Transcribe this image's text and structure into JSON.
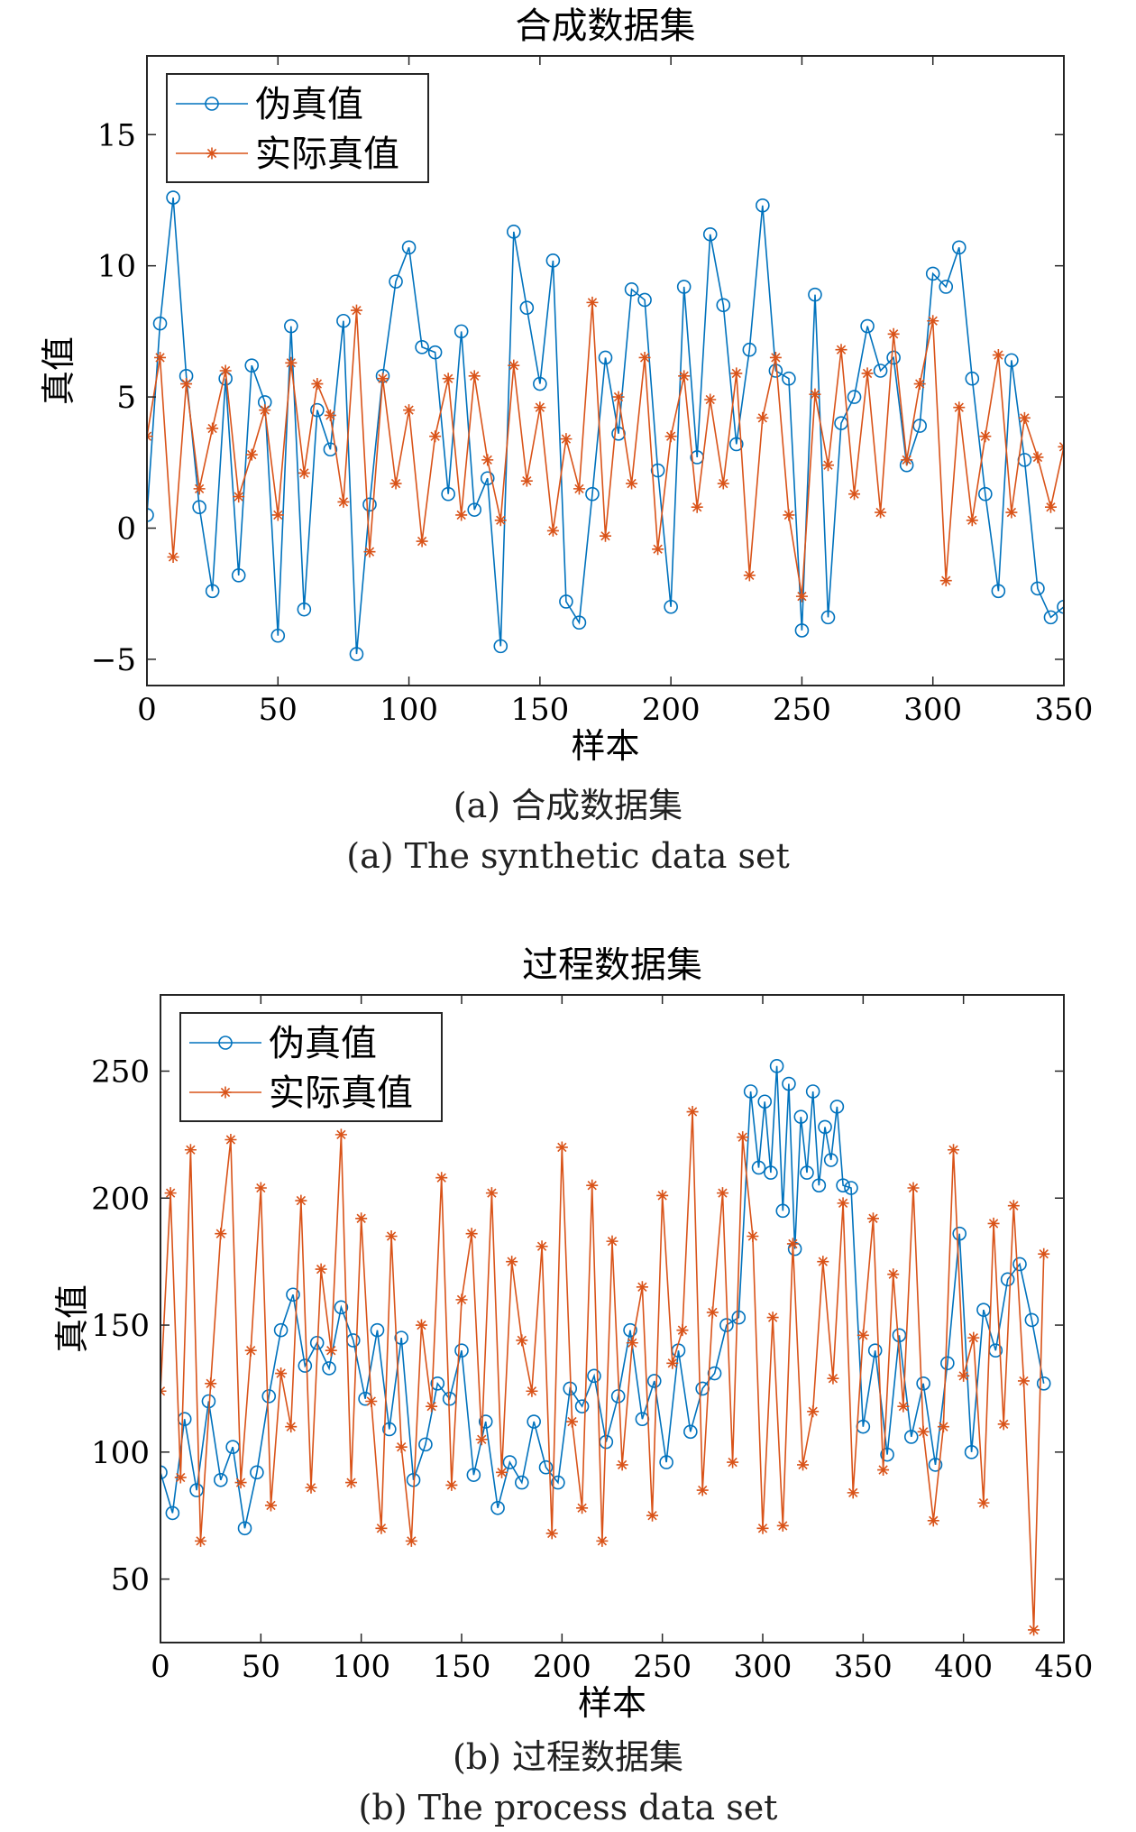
{
  "chart_data": [
    {
      "type": "line",
      "title": "合成数据集",
      "xlabel": "样本",
      "ylabel": "真值",
      "xlim": [
        0,
        350
      ],
      "ylim": [
        -6,
        18
      ],
      "xticks": [
        0,
        50,
        100,
        150,
        200,
        250,
        300,
        350
      ],
      "xtick_labels": [
        "0",
        "50",
        "100",
        "150",
        "200",
        "250",
        "300",
        "350"
      ],
      "yticks": [
        -5,
        0,
        5,
        10,
        15
      ],
      "ytick_labels": [
        "−5",
        "0",
        "5",
        "10",
        "15"
      ],
      "grid": false,
      "legend_position": "top-left",
      "series": [
        {
          "name": "伪真值",
          "color": "#0072BD",
          "marker": "circle",
          "x": [
            0,
            5,
            10,
            15,
            20,
            25,
            30,
            35,
            40,
            45,
            50,
            55,
            60,
            65,
            70,
            75,
            80,
            85,
            90,
            95,
            100,
            105,
            110,
            115,
            120,
            125,
            130,
            135,
            140,
            145,
            150,
            155,
            160,
            165,
            170,
            175,
            180,
            185,
            190,
            195,
            200,
            205,
            210,
            215,
            220,
            225,
            230,
            235,
            240,
            245,
            250,
            255,
            260,
            265,
            270,
            275,
            280,
            285,
            290,
            295,
            300,
            305,
            310,
            315,
            320,
            325,
            330,
            335,
            340,
            345,
            350
          ],
          "values": [
            0.5,
            7.8,
            12.6,
            5.8,
            0.8,
            -2.4,
            5.7,
            -1.8,
            6.2,
            4.8,
            -4.1,
            7.7,
            -3.1,
            4.5,
            3.0,
            7.9,
            -4.8,
            0.9,
            5.8,
            9.4,
            10.7,
            6.9,
            6.7,
            1.3,
            7.5,
            0.7,
            1.9,
            -4.5,
            11.3,
            8.4,
            5.5,
            10.2,
            -2.8,
            -3.6,
            1.3,
            6.5,
            3.6,
            9.1,
            8.7,
            2.2,
            -3.0,
            9.2,
            2.7,
            11.2,
            8.5,
            3.2,
            6.8,
            12.3,
            6.0,
            5.7,
            -3.9,
            8.9,
            -3.4,
            4.0,
            5.0,
            7.7,
            6.0,
            6.5,
            2.4,
            3.9,
            9.7,
            9.2,
            10.7,
            5.7,
            1.3,
            -2.4,
            6.4,
            2.6,
            -2.3,
            -3.4,
            -3.0
          ]
        },
        {
          "name": "实际真值",
          "color": "#D95319",
          "marker": "star",
          "x": [
            0,
            5,
            10,
            15,
            20,
            25,
            30,
            35,
            40,
            45,
            50,
            55,
            60,
            65,
            70,
            75,
            80,
            85,
            90,
            95,
            100,
            105,
            110,
            115,
            120,
            125,
            130,
            135,
            140,
            145,
            150,
            155,
            160,
            165,
            170,
            175,
            180,
            185,
            190,
            195,
            200,
            205,
            210,
            215,
            220,
            225,
            230,
            235,
            240,
            245,
            250,
            255,
            260,
            265,
            270,
            275,
            280,
            285,
            290,
            295,
            300,
            305,
            310,
            315,
            320,
            325,
            330,
            335,
            340,
            345,
            350
          ],
          "values": [
            3.5,
            6.5,
            -1.1,
            5.5,
            1.5,
            3.8,
            6.0,
            1.2,
            2.8,
            4.5,
            0.5,
            6.3,
            2.1,
            5.5,
            4.3,
            1.0,
            8.3,
            -0.9,
            5.7,
            1.7,
            4.5,
            -0.5,
            3.5,
            5.7,
            0.5,
            5.8,
            2.6,
            0.3,
            6.2,
            1.8,
            4.6,
            -0.1,
            3.4,
            1.5,
            8.6,
            -0.3,
            5.0,
            1.7,
            6.5,
            -0.8,
            3.5,
            5.8,
            0.8,
            4.9,
            1.7,
            5.9,
            -1.8,
            4.2,
            6.5,
            0.5,
            -2.6,
            5.1,
            2.4,
            6.8,
            1.3,
            5.9,
            0.6,
            7.4,
            2.6,
            5.5,
            7.9,
            -2.0,
            4.6,
            0.3,
            3.5,
            6.6,
            0.6,
            4.2,
            2.7,
            0.8,
            3.1
          ]
        }
      ]
    },
    {
      "type": "line",
      "title": "过程数据集",
      "xlabel": "样本",
      "ylabel": "真值",
      "xlim": [
        0,
        450
      ],
      "ylim": [
        25,
        280
      ],
      "xticks": [
        0,
        50,
        100,
        150,
        200,
        250,
        300,
        350,
        400,
        450
      ],
      "xtick_labels": [
        "0",
        "50",
        "100",
        "150",
        "200",
        "250",
        "300",
        "350",
        "400",
        "450"
      ],
      "yticks": [
        50,
        100,
        150,
        200,
        250
      ],
      "ytick_labels": [
        "50",
        "100",
        "150",
        "200",
        "250"
      ],
      "grid": false,
      "legend_position": "top-left",
      "series": [
        {
          "name": "伪真值",
          "color": "#0072BD",
          "marker": "circle",
          "x": [
            0,
            6,
            12,
            18,
            24,
            30,
            36,
            42,
            48,
            54,
            60,
            66,
            72,
            78,
            84,
            90,
            96,
            102,
            108,
            114,
            120,
            126,
            132,
            138,
            144,
            150,
            156,
            162,
            168,
            174,
            180,
            186,
            192,
            198,
            204,
            210,
            216,
            222,
            228,
            234,
            240,
            246,
            252,
            258,
            264,
            270,
            276,
            282,
            288,
            294,
            298,
            301,
            304,
            307,
            310,
            313,
            316,
            319,
            322,
            325,
            328,
            331,
            334,
            337,
            340,
            344,
            350,
            356,
            362,
            368,
            374,
            380,
            386,
            392,
            398,
            404,
            410,
            416,
            422,
            428,
            434,
            440
          ],
          "values": [
            92,
            76,
            113,
            85,
            120,
            89,
            102,
            70,
            92,
            122,
            148,
            162,
            134,
            143,
            133,
            157,
            144,
            121,
            148,
            109,
            145,
            89,
            103,
            127,
            121,
            140,
            91,
            112,
            78,
            96,
            88,
            112,
            94,
            88,
            125,
            118,
            130,
            104,
            122,
            148,
            113,
            128,
            96,
            140,
            108,
            125,
            131,
            150,
            153,
            242,
            212,
            238,
            210,
            252,
            195,
            245,
            180,
            232,
            210,
            242,
            205,
            228,
            215,
            236,
            205,
            204,
            110,
            140,
            99,
            146,
            106,
            127,
            95,
            135,
            186,
            100,
            156,
            140,
            168,
            174,
            152,
            127
          ]
        },
        {
          "name": "实际真值",
          "color": "#D95319",
          "marker": "star",
          "x": [
            0,
            5,
            10,
            15,
            20,
            25,
            30,
            35,
            40,
            45,
            50,
            55,
            60,
            65,
            70,
            75,
            80,
            85,
            90,
            95,
            100,
            105,
            110,
            115,
            120,
            125,
            130,
            135,
            140,
            145,
            150,
            155,
            160,
            165,
            170,
            175,
            180,
            185,
            190,
            195,
            200,
            205,
            210,
            215,
            220,
            225,
            230,
            235,
            240,
            245,
            250,
            255,
            260,
            265,
            270,
            275,
            280,
            285,
            290,
            295,
            300,
            305,
            310,
            315,
            320,
            325,
            330,
            335,
            340,
            345,
            350,
            355,
            360,
            365,
            370,
            375,
            380,
            385,
            390,
            395,
            400,
            405,
            410,
            415,
            420,
            425,
            430,
            435,
            440
          ],
          "values": [
            124,
            202,
            90,
            219,
            65,
            127,
            186,
            223,
            88,
            140,
            204,
            79,
            131,
            110,
            199,
            86,
            172,
            140,
            225,
            88,
            192,
            120,
            70,
            185,
            102,
            65,
            150,
            118,
            208,
            87,
            160,
            186,
            105,
            202,
            92,
            175,
            144,
            124,
            181,
            68,
            220,
            112,
            78,
            205,
            65,
            183,
            95,
            143,
            165,
            75,
            201,
            135,
            148,
            234,
            85,
            155,
            202,
            96,
            224,
            185,
            70,
            153,
            71,
            182,
            95,
            116,
            175,
            129,
            198,
            84,
            146,
            192,
            93,
            170,
            118,
            204,
            108,
            73,
            110,
            219,
            130,
            145,
            80,
            190,
            111,
            197,
            128,
            30,
            178
          ]
        }
      ]
    }
  ],
  "captions": {
    "a_cn": "(a) 合成数据集",
    "a_en": "(a) The synthetic data set",
    "b_cn": "(b) 过程数据集",
    "b_en": "(b) The process data set"
  }
}
